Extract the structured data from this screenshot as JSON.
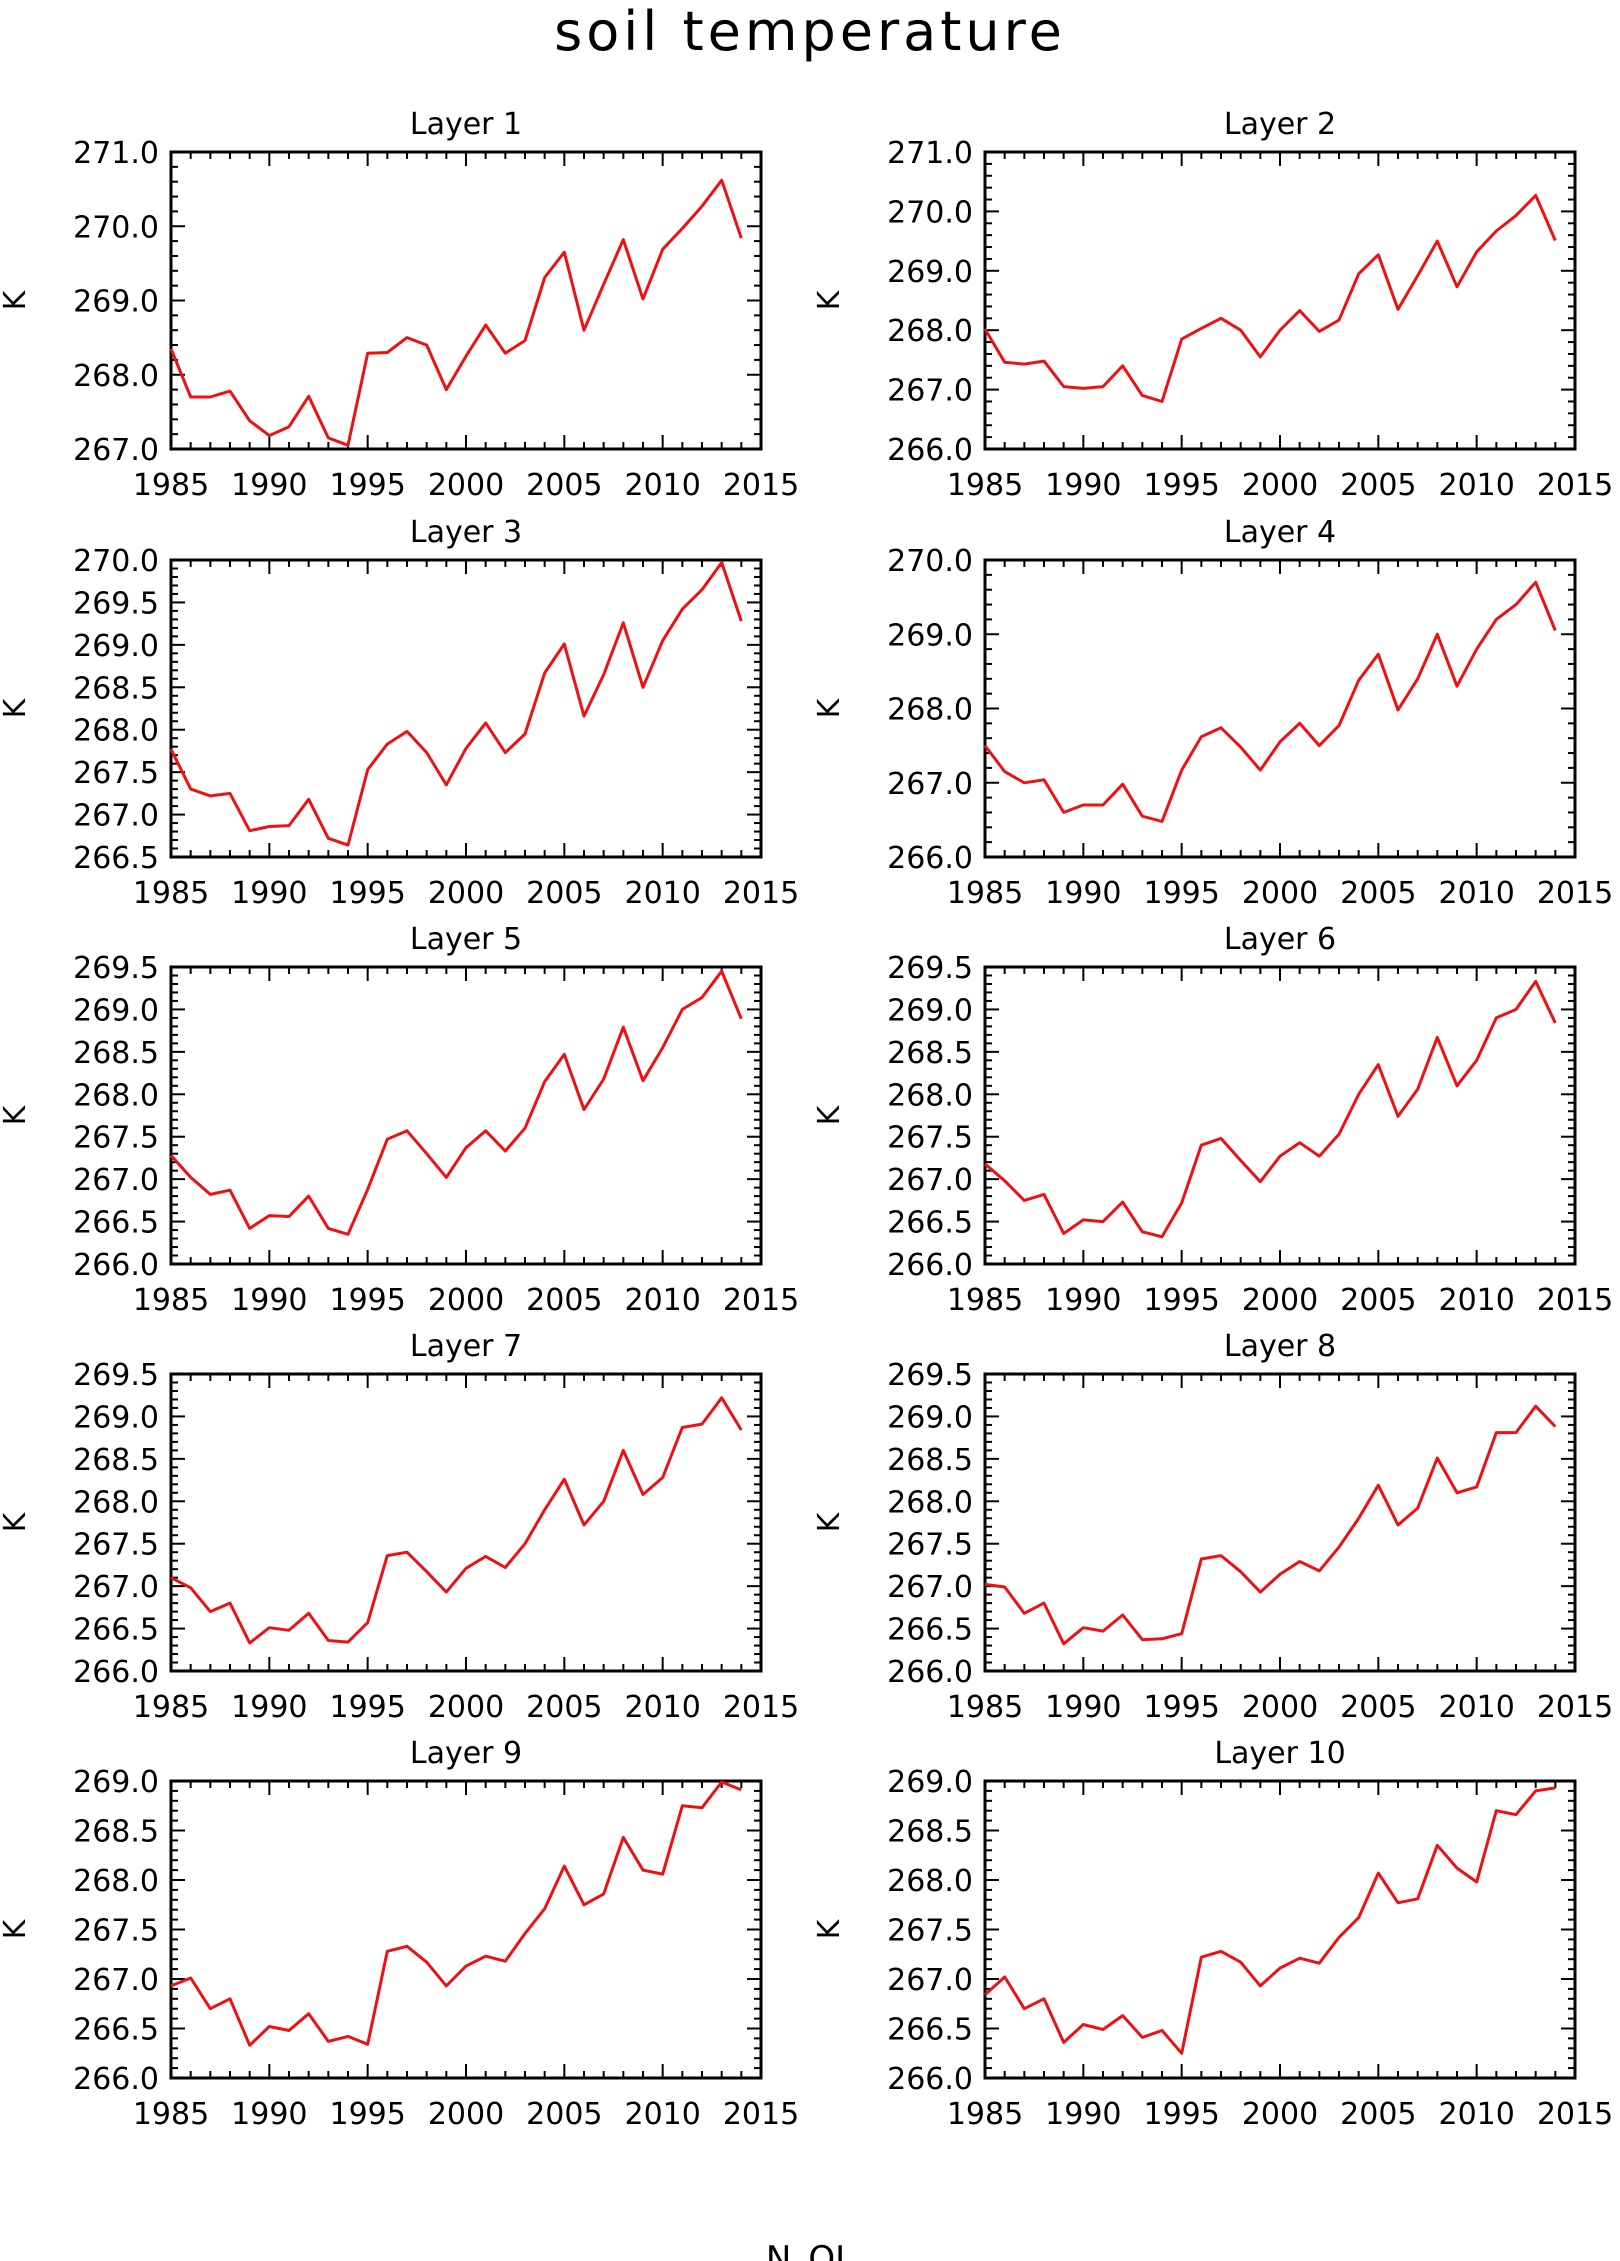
{
  "figure": {
    "title": "soil temperature",
    "footer": "N_OL",
    "line_color": "#ee1111"
  },
  "chart_data": [
    {
      "type": "line",
      "title": "Layer 1",
      "ylabel": "K",
      "xlim": [
        1985,
        2015
      ],
      "ylim": [
        267.0,
        271.0
      ],
      "xticks": [
        "1985",
        "1990",
        "1995",
        "2000",
        "2005",
        "2010",
        "2015"
      ],
      "yticks": [
        "267.0",
        "268.0",
        "269.0",
        "270.0",
        "271.0"
      ],
      "x": [
        1985,
        1986,
        1987,
        1988,
        1989,
        1990,
        1991,
        1992,
        1993,
        1994,
        1995,
        1996,
        1997,
        1998,
        1999,
        2000,
        2001,
        2002,
        2003,
        2004,
        2005,
        2006,
        2007,
        2008,
        2009,
        2010,
        2011,
        2012,
        2013,
        2014
      ],
      "y": [
        268.35,
        267.7,
        267.7,
        267.78,
        267.38,
        267.18,
        267.3,
        267.71,
        267.15,
        267.05,
        268.29,
        268.3,
        268.5,
        268.4,
        267.8,
        268.25,
        268.67,
        268.29,
        268.46,
        269.31,
        269.65,
        268.6,
        269.22,
        269.82,
        269.02,
        269.69,
        269.97,
        270.27,
        270.62,
        269.84
      ]
    },
    {
      "type": "line",
      "title": "Layer 2",
      "ylabel": "K",
      "xlim": [
        1985,
        2015
      ],
      "ylim": [
        266.0,
        271.0
      ],
      "xticks": [
        "1985",
        "1990",
        "1995",
        "2000",
        "2005",
        "2010",
        "2015"
      ],
      "yticks": [
        "266.0",
        "267.0",
        "268.0",
        "269.0",
        "270.0",
        "271.0"
      ],
      "x": [
        1985,
        1986,
        1987,
        1988,
        1989,
        1990,
        1991,
        1992,
        1993,
        1994,
        1995,
        1996,
        1997,
        1998,
        1999,
        2000,
        2001,
        2002,
        2003,
        2004,
        2005,
        2006,
        2007,
        2008,
        2009,
        2010,
        2011,
        2012,
        2013,
        2014
      ],
      "y": [
        268.02,
        267.46,
        267.43,
        267.48,
        267.05,
        267.02,
        267.05,
        267.4,
        266.9,
        266.8,
        267.85,
        268.03,
        268.2,
        268.0,
        267.55,
        268.0,
        268.33,
        267.98,
        268.17,
        268.95,
        269.27,
        268.35,
        268.92,
        269.5,
        268.73,
        269.32,
        269.67,
        269.93,
        270.27,
        269.51
      ]
    },
    {
      "type": "line",
      "title": "Layer 3",
      "ylabel": "K",
      "xlim": [
        1985,
        2015
      ],
      "ylim": [
        266.5,
        270.0
      ],
      "xticks": [
        "1985",
        "1990",
        "1995",
        "2000",
        "2005",
        "2010",
        "2015"
      ],
      "yticks": [
        "266.5",
        "267.0",
        "267.5",
        "268.0",
        "268.5",
        "269.0",
        "269.5",
        "270.0"
      ],
      "x": [
        1985,
        1986,
        1987,
        1988,
        1989,
        1990,
        1991,
        1992,
        1993,
        1994,
        1995,
        1996,
        1997,
        1998,
        1999,
        2000,
        2001,
        2002,
        2003,
        2004,
        2005,
        2006,
        2007,
        2008,
        2009,
        2010,
        2011,
        2012,
        2013,
        2014
      ],
      "y": [
        267.77,
        267.3,
        267.22,
        267.25,
        266.81,
        266.86,
        266.87,
        267.18,
        266.72,
        266.64,
        267.53,
        267.83,
        267.98,
        267.73,
        267.35,
        267.78,
        268.08,
        267.73,
        267.95,
        268.67,
        269.01,
        268.16,
        268.65,
        269.26,
        268.5,
        269.05,
        269.42,
        269.65,
        269.97,
        269.28
      ]
    },
    {
      "type": "line",
      "title": "Layer 4",
      "ylabel": "K",
      "xlim": [
        1985,
        2015
      ],
      "ylim": [
        266.0,
        270.0
      ],
      "xticks": [
        "1985",
        "1990",
        "1995",
        "2000",
        "2005",
        "2010",
        "2015"
      ],
      "yticks": [
        "266.0",
        "267.0",
        "268.0",
        "269.0",
        "270.0"
      ],
      "x": [
        1985,
        1986,
        1987,
        1988,
        1989,
        1990,
        1991,
        1992,
        1993,
        1994,
        1995,
        1996,
        1997,
        1998,
        1999,
        2000,
        2001,
        2002,
        2003,
        2004,
        2005,
        2006,
        2007,
        2008,
        2009,
        2010,
        2011,
        2012,
        2013,
        2014
      ],
      "y": [
        267.5,
        267.15,
        267.0,
        267.04,
        266.6,
        266.7,
        266.7,
        266.98,
        266.55,
        266.48,
        267.17,
        267.62,
        267.74,
        267.48,
        267.17,
        267.55,
        267.8,
        267.5,
        267.77,
        268.38,
        268.73,
        267.98,
        268.4,
        269.0,
        268.3,
        268.8,
        269.2,
        269.4,
        269.7,
        269.05
      ]
    },
    {
      "type": "line",
      "title": "Layer 5",
      "ylabel": "K",
      "xlim": [
        1985,
        2015
      ],
      "ylim": [
        266.0,
        269.5
      ],
      "xticks": [
        "1985",
        "1990",
        "1995",
        "2000",
        "2005",
        "2010",
        "2015"
      ],
      "yticks": [
        "266.0",
        "266.5",
        "267.0",
        "267.5",
        "268.0",
        "268.5",
        "269.0",
        "269.5"
      ],
      "x": [
        1985,
        1986,
        1987,
        1988,
        1989,
        1990,
        1991,
        1992,
        1993,
        1994,
        1995,
        1996,
        1997,
        1998,
        1999,
        2000,
        2001,
        2002,
        2003,
        2004,
        2005,
        2006,
        2007,
        2008,
        2009,
        2010,
        2011,
        2012,
        2013,
        2014
      ],
      "y": [
        267.28,
        267.02,
        266.82,
        266.87,
        266.42,
        266.57,
        266.56,
        266.8,
        266.42,
        266.35,
        266.88,
        267.47,
        267.57,
        267.3,
        267.02,
        267.37,
        267.57,
        267.33,
        267.6,
        268.15,
        268.47,
        267.82,
        268.18,
        268.79,
        268.16,
        268.55,
        269.0,
        269.14,
        269.45,
        268.89
      ]
    },
    {
      "type": "line",
      "title": "Layer 6",
      "ylabel": "K",
      "xlim": [
        1985,
        2015
      ],
      "ylim": [
        266.0,
        269.5
      ],
      "xticks": [
        "1985",
        "1990",
        "1995",
        "2000",
        "2005",
        "2010",
        "2015"
      ],
      "yticks": [
        "266.0",
        "266.5",
        "267.0",
        "267.5",
        "268.0",
        "268.5",
        "269.0",
        "269.5"
      ],
      "x": [
        1985,
        1986,
        1987,
        1988,
        1989,
        1990,
        1991,
        1992,
        1993,
        1994,
        1995,
        1996,
        1997,
        1998,
        1999,
        2000,
        2001,
        2002,
        2003,
        2004,
        2005,
        2006,
        2007,
        2008,
        2009,
        2010,
        2011,
        2012,
        2013,
        2014
      ],
      "y": [
        267.18,
        266.98,
        266.75,
        266.82,
        266.36,
        266.52,
        266.5,
        266.73,
        266.38,
        266.32,
        266.72,
        267.4,
        267.48,
        267.22,
        266.97,
        267.27,
        267.43,
        267.27,
        267.53,
        268.0,
        268.35,
        267.74,
        268.06,
        268.67,
        268.1,
        268.4,
        268.9,
        269.0,
        269.33,
        268.84
      ]
    },
    {
      "type": "line",
      "title": "Layer 7",
      "ylabel": "K",
      "xlim": [
        1985,
        2015
      ],
      "ylim": [
        266.0,
        269.5
      ],
      "xticks": [
        "1985",
        "1990",
        "1995",
        "2000",
        "2005",
        "2010",
        "2015"
      ],
      "yticks": [
        "266.0",
        "266.5",
        "267.0",
        "267.5",
        "268.0",
        "268.5",
        "269.0",
        "269.5"
      ],
      "x": [
        1985,
        1986,
        1987,
        1988,
        1989,
        1990,
        1991,
        1992,
        1993,
        1994,
        1995,
        1996,
        1997,
        1998,
        1999,
        2000,
        2001,
        2002,
        2003,
        2004,
        2005,
        2006,
        2007,
        2008,
        2009,
        2010,
        2011,
        2012,
        2013,
        2014
      ],
      "y": [
        267.1,
        266.98,
        266.7,
        266.8,
        266.33,
        266.51,
        266.48,
        266.68,
        266.36,
        266.34,
        266.57,
        267.36,
        267.4,
        267.17,
        266.93,
        267.21,
        267.35,
        267.22,
        267.5,
        267.9,
        268.26,
        267.72,
        268.0,
        268.6,
        268.08,
        268.28,
        268.87,
        268.91,
        269.22,
        268.84
      ]
    },
    {
      "type": "line",
      "title": "Layer 8",
      "ylabel": "K",
      "xlim": [
        1985,
        2015
      ],
      "ylim": [
        266.0,
        269.5
      ],
      "xticks": [
        "1985",
        "1990",
        "1995",
        "2000",
        "2005",
        "2010",
        "2015"
      ],
      "yticks": [
        "266.0",
        "266.5",
        "267.0",
        "267.5",
        "268.0",
        "268.5",
        "269.0",
        "269.5"
      ],
      "x": [
        1985,
        1986,
        1987,
        1988,
        1989,
        1990,
        1991,
        1992,
        1993,
        1994,
        1995,
        1996,
        1997,
        1998,
        1999,
        2000,
        2001,
        2002,
        2003,
        2004,
        2005,
        2006,
        2007,
        2008,
        2009,
        2010,
        2011,
        2012,
        2013,
        2014
      ],
      "y": [
        267.02,
        266.99,
        266.68,
        266.8,
        266.32,
        266.51,
        266.47,
        266.66,
        266.37,
        266.38,
        266.44,
        267.32,
        267.36,
        267.17,
        266.93,
        267.14,
        267.29,
        267.18,
        267.46,
        267.8,
        268.19,
        267.72,
        267.92,
        268.51,
        268.1,
        268.17,
        268.81,
        268.81,
        269.12,
        268.88
      ]
    },
    {
      "type": "line",
      "title": "Layer 9",
      "ylabel": "K",
      "xlim": [
        1985,
        2015
      ],
      "ylim": [
        266.0,
        269.0
      ],
      "xticks": [
        "1985",
        "1990",
        "1995",
        "2000",
        "2005",
        "2010",
        "2015"
      ],
      "yticks": [
        "266.0",
        "266.5",
        "267.0",
        "267.5",
        "268.0",
        "268.5",
        "269.0"
      ],
      "x": [
        1985,
        1986,
        1987,
        1988,
        1989,
        1990,
        1991,
        1992,
        1993,
        1994,
        1995,
        1996,
        1997,
        1998,
        1999,
        2000,
        2001,
        2002,
        2003,
        2004,
        2005,
        2006,
        2007,
        2008,
        2009,
        2010,
        2011,
        2012,
        2013,
        2014
      ],
      "y": [
        266.93,
        267.01,
        266.7,
        266.8,
        266.33,
        266.52,
        266.48,
        266.65,
        266.37,
        266.42,
        266.34,
        267.28,
        267.33,
        267.17,
        266.93,
        267.13,
        267.23,
        267.18,
        267.46,
        267.71,
        268.14,
        267.75,
        267.86,
        268.43,
        268.1,
        268.06,
        268.75,
        268.73,
        268.99,
        268.91
      ]
    },
    {
      "type": "line",
      "title": "Layer 10",
      "ylabel": "K",
      "xlim": [
        1985,
        2015
      ],
      "ylim": [
        266.0,
        269.0
      ],
      "xticks": [
        "1985",
        "1990",
        "1995",
        "2000",
        "2005",
        "2010",
        "2015"
      ],
      "yticks": [
        "266.0",
        "266.5",
        "267.0",
        "267.5",
        "268.0",
        "268.5",
        "269.0"
      ],
      "x": [
        1985,
        1986,
        1987,
        1988,
        1989,
        1990,
        1991,
        1992,
        1993,
        1994,
        1995,
        1996,
        1997,
        1998,
        1999,
        2000,
        2001,
        2002,
        2003,
        2004,
        2005,
        2006,
        2007,
        2008,
        2009,
        2010,
        2011,
        2012,
        2013,
        2014
      ],
      "y": [
        266.84,
        267.02,
        266.7,
        266.8,
        266.36,
        266.54,
        266.49,
        266.63,
        266.41,
        266.48,
        266.25,
        267.22,
        267.28,
        267.17,
        266.93,
        267.11,
        267.21,
        267.16,
        267.42,
        267.62,
        268.07,
        267.77,
        267.81,
        268.35,
        268.12,
        267.98,
        268.7,
        268.66,
        268.9,
        268.93
      ]
    }
  ]
}
